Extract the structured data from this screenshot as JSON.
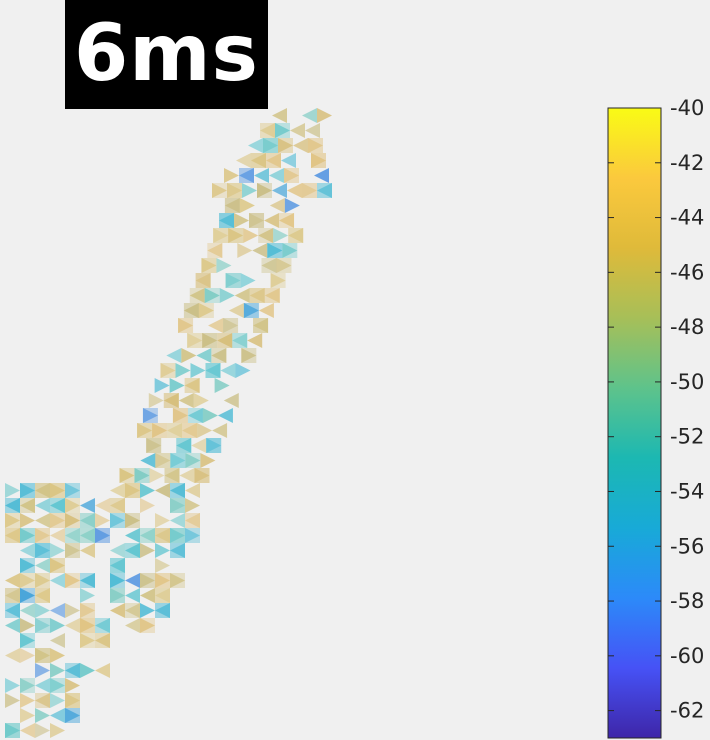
{
  "time_label": "6ms",
  "colorbar": {
    "min": -63,
    "max": -40,
    "ticks": [
      "-40",
      "-42",
      "-44",
      "-46",
      "-48",
      "-50",
      "-52",
      "-54",
      "-56",
      "-58",
      "-60",
      "-62"
    ],
    "tick_values": [
      -40,
      -42,
      -44,
      -46,
      -48,
      -50,
      -52,
      -54,
      -56,
      -58,
      -60,
      -62
    ],
    "colormap": [
      "#3e26a8",
      "#4652f6",
      "#2c8af9",
      "#18aad7",
      "#1cb8b2",
      "#5ec38b",
      "#a7bf58",
      "#dfba3a",
      "#fbc93d",
      "#f9fb15"
    ]
  },
  "mesh": {
    "description_colors": {
      "dominant": "#d8c07e",
      "secondary": "#6cc7cc",
      "accent": "#3a9fd8"
    }
  }
}
